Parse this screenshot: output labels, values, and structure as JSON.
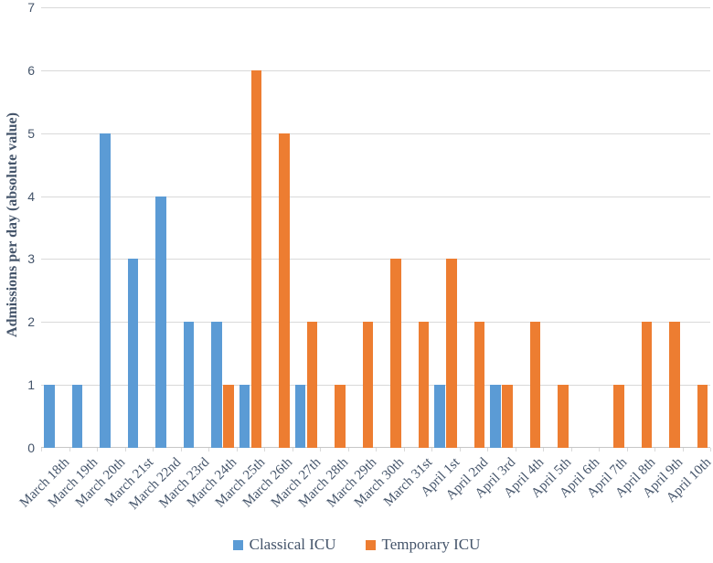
{
  "chart_data": {
    "type": "bar",
    "title": "",
    "xlabel": "",
    "ylabel": "Admissions per day (absolute value)",
    "ylim": [
      0,
      7
    ],
    "yticks": [
      0,
      1,
      2,
      3,
      4,
      5,
      6,
      7
    ],
    "grid": true,
    "legend_position": "bottom",
    "categories": [
      "March 18th",
      "March 19th",
      "March 20th",
      "March 21st",
      "March 22nd",
      "March 23rd",
      "March 24th",
      "March 25th",
      "March 26th",
      "March 27th",
      "March 28th",
      "March 29th",
      "March 30th",
      "March 31st",
      "April 1st",
      "April 2nd",
      "April 3rd",
      "April 4th",
      "April 5th",
      "April 6th",
      "April 7th",
      "April 8th",
      "April 9th",
      "April 10th"
    ],
    "series": [
      {
        "name": "Classical ICU",
        "color": "#5B9BD5",
        "values": [
          1,
          1,
          5,
          3,
          4,
          2,
          2,
          1,
          0,
          1,
          0,
          0,
          0,
          0,
          1,
          0,
          1,
          0,
          0,
          0,
          0,
          0,
          0,
          0
        ]
      },
      {
        "name": "Temporary ICU",
        "color": "#ED7D31",
        "values": [
          0,
          0,
          0,
          0,
          0,
          0,
          1,
          6,
          5,
          2,
          1,
          2,
          3,
          2,
          3,
          2,
          1,
          2,
          1,
          0,
          1,
          2,
          2,
          1
        ]
      }
    ]
  },
  "colors": {
    "background": "#ffffff",
    "gridline": "#d9d9d9",
    "axis_line": "#c6c6c6",
    "text": "#44546a"
  }
}
